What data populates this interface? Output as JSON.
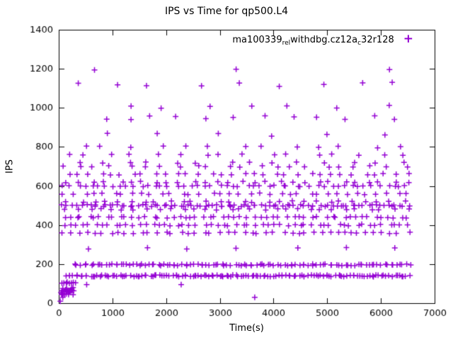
{
  "chart_data": {
    "type": "scatter",
    "title": "IPS vs Time for qp500.L4",
    "xlabel": "Time(s)",
    "ylabel": "IPS",
    "xlim": [
      0,
      7000
    ],
    "ylim": [
      0,
      1400
    ],
    "xticks": [
      0,
      1000,
      2000,
      3000,
      4000,
      5000,
      6000,
      7000
    ],
    "yticks": [
      0,
      200,
      400,
      600,
      800,
      1000,
      1200,
      1400
    ],
    "grid": false,
    "marker": "plus",
    "marker_color": "#9400d3",
    "seed": 42,
    "legend": {
      "position": "top-right-inside",
      "marker": "+",
      "segments": [
        {
          "text": "ma100339",
          "sub": false
        },
        {
          "text": "rel",
          "sub": true
        },
        {
          "text": "withdbg.cz12a",
          "sub": false
        },
        {
          "text": "c",
          "sub": true
        },
        {
          "text": "32r128",
          "sub": false
        }
      ]
    },
    "bands": [
      {
        "y": 140,
        "x0": 130,
        "x1": 6530,
        "n": 140,
        "jx": 70,
        "jy": 9
      },
      {
        "y": 196,
        "x0": 300,
        "x1": 6530,
        "n": 110,
        "jx": 80,
        "jy": 9
      },
      {
        "y": 500,
        "x0": 100,
        "x1": 6520,
        "n": 85,
        "jx": 100,
        "jy": 10
      },
      {
        "y": 520,
        "x0": 200,
        "x1": 6400,
        "n": 28,
        "jx": 160,
        "jy": 8
      },
      {
        "y": 480,
        "x0": 150,
        "x1": 6450,
        "n": 30,
        "jx": 160,
        "jy": 8
      },
      {
        "y": 440,
        "x0": 80,
        "x1": 6500,
        "n": 55,
        "jx": 120,
        "jy": 8
      },
      {
        "y": 400,
        "x0": 80,
        "x1": 6500,
        "n": 55,
        "jx": 120,
        "jy": 8
      },
      {
        "y": 360,
        "x0": 80,
        "x1": 6480,
        "n": 45,
        "jx": 140,
        "jy": 8
      },
      {
        "y": 280,
        "x0": 600,
        "x1": 6200,
        "n": 7,
        "jx": 300,
        "jy": 14
      },
      {
        "y": 560,
        "x0": 100,
        "x1": 6480,
        "n": 36,
        "jx": 150,
        "jy": 8
      },
      {
        "y": 600,
        "x0": 100,
        "x1": 6500,
        "n": 50,
        "jx": 130,
        "jy": 8
      },
      {
        "y": 620,
        "x0": 200,
        "x1": 6450,
        "n": 28,
        "jx": 160,
        "jy": 8
      },
      {
        "y": 660,
        "x0": 150,
        "x1": 6500,
        "n": 32,
        "jx": 150,
        "jy": 8
      },
      {
        "y": 700,
        "x0": 100,
        "x1": 6450,
        "n": 22,
        "jx": 200,
        "jy": 8
      },
      {
        "y": 720,
        "x0": 300,
        "x1": 6400,
        "n": 14,
        "jx": 250,
        "jy": 8
      },
      {
        "y": 760,
        "x0": 150,
        "x1": 6450,
        "n": 16,
        "jx": 250,
        "jy": 8
      },
      {
        "y": 800,
        "x0": 400,
        "x1": 6300,
        "n": 13,
        "jx": 280,
        "jy": 10
      },
      {
        "y": 865,
        "x0": 900,
        "x1": 6200,
        "n": 6,
        "jx": 350,
        "jy": 25
      },
      {
        "y": 950,
        "x0": 800,
        "x1": 6350,
        "n": 12,
        "jx": 300,
        "jy": 20
      },
      {
        "y": 1005,
        "x0": 1200,
        "x1": 6000,
        "n": 7,
        "jx": 350,
        "jy": 15
      },
      {
        "y": 1120,
        "x0": 300,
        "x1": 6300,
        "n": 9,
        "jx": 350,
        "jy": 30
      },
      {
        "y": 1197,
        "x0": 650,
        "x1": 6080,
        "n": 3,
        "jx": 200,
        "jy": 6
      },
      {
        "y": 62,
        "x0": 40,
        "x1": 280,
        "n": 24,
        "jx": 20,
        "jy": 40
      },
      {
        "y": 105,
        "x0": 60,
        "x1": 300,
        "n": 8,
        "jx": 30,
        "jy": 10
      }
    ],
    "extra_points": [
      [
        520,
        95
      ],
      [
        2280,
        95
      ],
      [
        3650,
        30
      ],
      [
        30,
        10
      ],
      [
        75,
        30
      ]
    ]
  }
}
